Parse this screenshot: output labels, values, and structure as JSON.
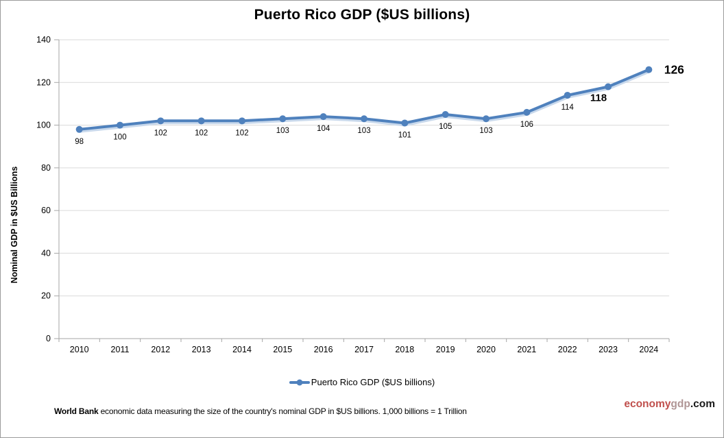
{
  "chart_data": {
    "type": "line",
    "title": "Puerto Rico GDP ($US billions)",
    "ylabel": "Nominal GDP in $US Billions",
    "xlabel": "",
    "categories": [
      "2010",
      "2011",
      "2012",
      "2013",
      "2014",
      "2015",
      "2016",
      "2017",
      "2018",
      "2019",
      "2020",
      "2021",
      "2022",
      "2023",
      "2024"
    ],
    "series": [
      {
        "name": "Puerto Rico GDP ($US billions)",
        "values": [
          98,
          100,
          102,
          102,
          102,
          103,
          104,
          103,
          101,
          105,
          103,
          106,
          114,
          118,
          126
        ]
      }
    ],
    "ylim": [
      0,
      140
    ],
    "ytick_step": 20,
    "yticks": [
      0,
      20,
      40,
      60,
      80,
      100,
      120,
      140
    ],
    "grid": "horizontal",
    "legend_position": "bottom",
    "label_styles": [
      "normal",
      "normal",
      "normal",
      "normal",
      "normal",
      "normal",
      "normal",
      "normal",
      "normal",
      "normal",
      "normal",
      "normal",
      "normal",
      "bold",
      "bold-right"
    ],
    "colors": {
      "line": "#4f81bd",
      "line_shadow": "#c9d9ec",
      "grid": "#d9d9d9",
      "axis": "#a6a6a6",
      "text": "#000000"
    }
  },
  "legend": {
    "label": "Puerto Rico GDP ($US billions)"
  },
  "footer": {
    "source": "World Bank",
    "description": " economic data  measuring the size of the country's nominal GDP in $US billions. 1,000 billions = 1 Trillion"
  },
  "site": {
    "economy": "economy",
    "gdp": "gdp",
    "com": ".com",
    "economy_color": "#c0504d",
    "gdp_color": "#b09595",
    "com_color": "#1a1a1a"
  }
}
